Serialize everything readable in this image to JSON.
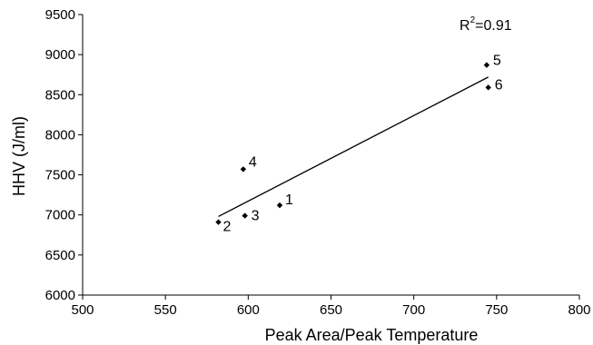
{
  "chart_data": {
    "type": "scatter",
    "title": "",
    "xlabel": "Peak Area/Peak Temperature",
    "ylabel": "HHV (J/ml)",
    "xlim": [
      500,
      800
    ],
    "ylim": [
      6000,
      9500
    ],
    "xticks": [
      500,
      550,
      600,
      650,
      700,
      750,
      800
    ],
    "yticks": [
      6000,
      6500,
      7000,
      7500,
      8000,
      8500,
      9000,
      9500
    ],
    "points": [
      {
        "label": "1",
        "x": 619,
        "y": 7120
      },
      {
        "label": "2",
        "x": 582,
        "y": 6910
      },
      {
        "label": "3",
        "x": 598,
        "y": 6990
      },
      {
        "label": "4",
        "x": 597,
        "y": 7570
      },
      {
        "label": "5",
        "x": 744,
        "y": 8870
      },
      {
        "label": "6",
        "x": 745,
        "y": 8590
      }
    ],
    "fit_line": {
      "x": [
        582,
        745
      ],
      "y": [
        6980,
        8720
      ]
    },
    "r2_prefix": "R",
    "r2_superscript": "2",
    "r2_value": "=0.91",
    "grid": false
  }
}
